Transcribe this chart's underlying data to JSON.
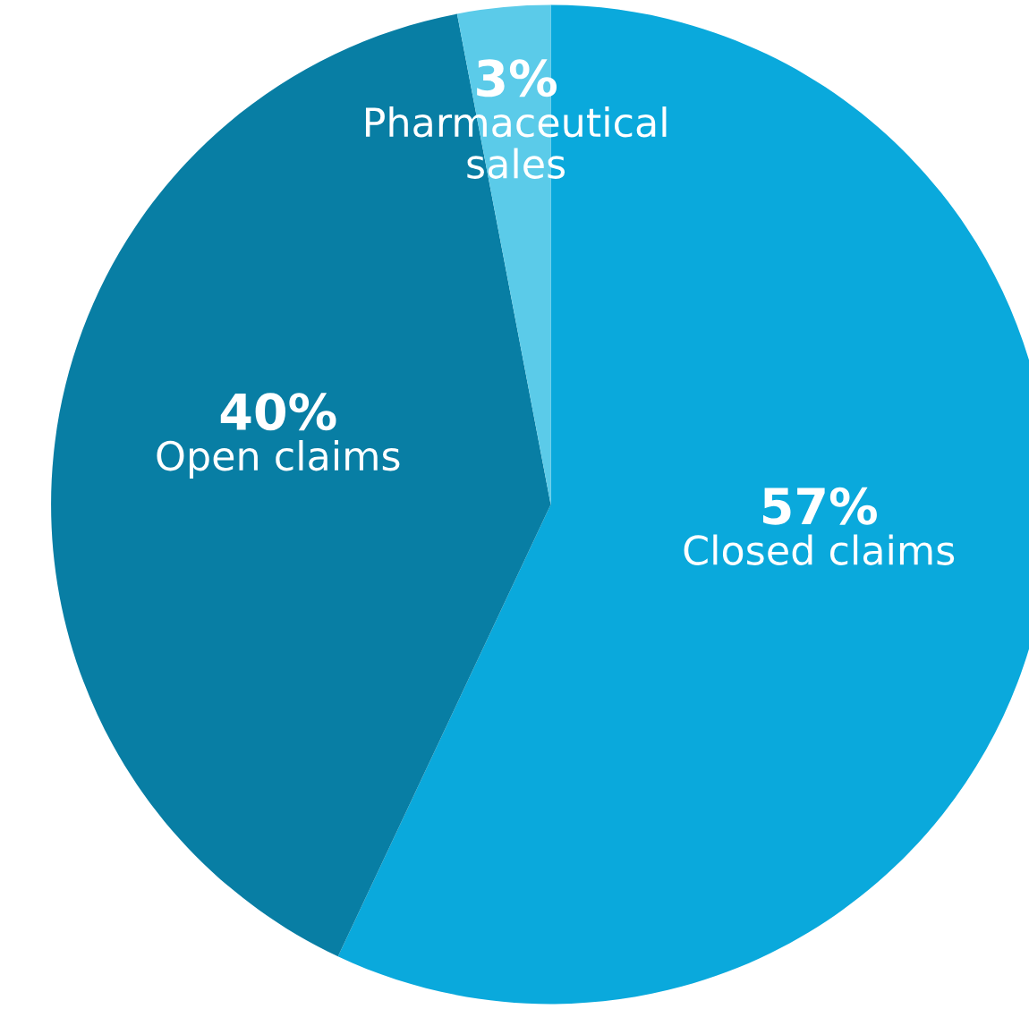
{
  "chart_data": {
    "type": "pie",
    "categories": [
      "Closed claims",
      "Open claims",
      "Pharmaceutical sales"
    ],
    "values": [
      57,
      40,
      3
    ],
    "value_labels": [
      "57%",
      "40%",
      "3%"
    ],
    "colors": [
      "#0aa9dc",
      "#087ea4",
      "#5bcbe9"
    ],
    "legend": false
  }
}
